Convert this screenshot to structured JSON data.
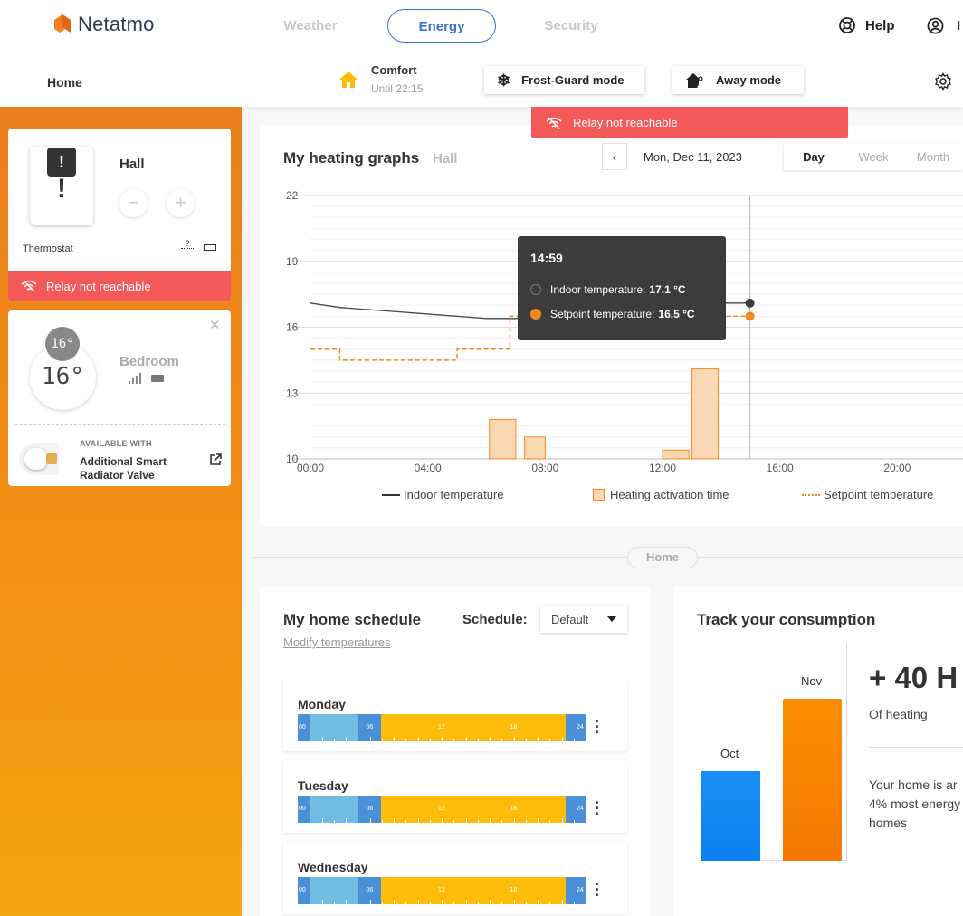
{
  "brand": {
    "name": "Netatmo"
  },
  "nav": {
    "tabs": [
      "Weather",
      "Energy",
      "Security"
    ],
    "active": "Energy",
    "help": "Help",
    "user_initial": "I"
  },
  "subbar": {
    "home": "Home",
    "comfort_title": "Comfort",
    "comfort_until": "Until 22:15",
    "frost_guard": "Frost-Guard mode",
    "away": "Away mode"
  },
  "rooms": {
    "hall": {
      "name": "Hall",
      "badge": "!",
      "device_glyph": "!",
      "device": "Thermostat",
      "signal_glyph": "?",
      "alert": "Relay not reachable"
    },
    "bedroom": {
      "name": "Bedroom",
      "setpoint": "16°",
      "current": "16°",
      "available_with": "AVAILABLE WITH",
      "product_line1": "Additional Smart",
      "product_line2": "Radiator Valve"
    }
  },
  "alert_top": "Relay not reachable",
  "graph": {
    "title": "My heating graphs",
    "room": "Hall",
    "date": "Mon, Dec 11, 2023",
    "ranges": [
      "Day",
      "Week",
      "Month"
    ],
    "active_range": "Day",
    "tooltip": {
      "time": "14:59",
      "indoor_label": "Indoor temperature:",
      "indoor_value": "17.1 °C",
      "setpoint_label": "Setpoint temperature:",
      "setpoint_value": "16.5 °C"
    },
    "legend": {
      "indoor": "Indoor temperature",
      "heating": "Heating activation time",
      "setpoint": "Setpoint temperature"
    },
    "colors": {
      "indoor": "#444444",
      "setpoint": "#f08a1e",
      "heating_fill": "#fcd7b3",
      "heating_stroke": "#f08a1e"
    }
  },
  "chart_data": {
    "type": "line",
    "xlabel": "",
    "ylabel": "",
    "ylim": [
      10,
      22
    ],
    "xlim": [
      0,
      24
    ],
    "yticks": [
      "22",
      "19",
      "16",
      "13",
      "10"
    ],
    "xticks": [
      "00:00",
      "04:00",
      "08:00",
      "12:00",
      "16:00",
      "20:00"
    ],
    "grid": true,
    "series": [
      {
        "name": "Indoor temperature",
        "kind": "line",
        "x": [
          0,
          0.5,
          1,
          2,
          3,
          4,
          5,
          6,
          7,
          8,
          9,
          10,
          11,
          12,
          13,
          14,
          14.98
        ],
        "y": [
          17.1,
          17.0,
          16.9,
          16.8,
          16.7,
          16.6,
          16.5,
          16.4,
          16.4,
          16.5,
          16.6,
          16.7,
          16.8,
          16.9,
          17.0,
          17.1,
          17.1
        ]
      },
      {
        "name": "Setpoint temperature",
        "kind": "step",
        "x": [
          0,
          1,
          1,
          5,
          5,
          6.8,
          6.8,
          14.98
        ],
        "y": [
          15.0,
          15.0,
          14.5,
          14.5,
          15.0,
          15.0,
          16.5,
          16.5
        ]
      },
      {
        "name": "Heating activation time",
        "kind": "bar",
        "bars": [
          {
            "start": 6.1,
            "end": 7.0,
            "value": 11.8
          },
          {
            "start": 7.3,
            "end": 8.0,
            "value": 11.0
          },
          {
            "start": 12.0,
            "end": 12.9,
            "value": 10.4
          },
          {
            "start": 13.0,
            "end": 13.9,
            "value": 14.1
          }
        ]
      }
    ],
    "cursor_x": 14.98
  },
  "separator": "Home",
  "schedule": {
    "title": "My home schedule",
    "label": "Schedule:",
    "selected": "Default",
    "modify": "Modify temperatures",
    "days": [
      {
        "name": "Monday"
      },
      {
        "name": "Tuesday"
      },
      {
        "name": "Wednesday"
      }
    ],
    "tick_labels": [
      "00",
      "06",
      "12",
      "18",
      "24"
    ],
    "colors": {
      "night": "#4a90d9",
      "eco": "#6fbde0",
      "comfort": "#fdbb0a"
    }
  },
  "consumption": {
    "title": "Track your consumption",
    "months": [
      "Oct",
      "Nov"
    ],
    "big": "+ 40 H",
    "of_heating": "Of heating",
    "your_home": [
      "Your home is ar",
      "4% most energy",
      "homes"
    ],
    "colors": {
      "oct": "#1188f0",
      "nov": "#f98200"
    }
  }
}
